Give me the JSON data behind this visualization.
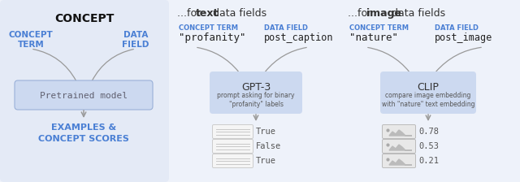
{
  "bg_color": "#eef2fa",
  "panel1_bg": "#e4eaf6",
  "box_bg": "#ccd9f0",
  "box_edge": "#9ab0d8",
  "doc_bg": "#f5f5f5",
  "doc_edge": "#cccccc",
  "img_bg": "#e8e8e8",
  "img_edge": "#bbbbbb",
  "blue_color": "#4a7fd4",
  "gray_arrow": "#999999",
  "text_dark": "#222222",
  "text_mid": "#555555",
  "text_mono": "#606070",
  "panel1_title": "CONCEPT",
  "panel1_left_label": "CONCEPT\nTERM",
  "panel1_right_label": "DATA\nFIELD",
  "panel1_box": "Pretrained model",
  "panel1_bottom": "EXAMPLES &\nCONCEPT SCORES",
  "p2_title_pre": "...for ",
  "p2_title_bold": "text",
  "p2_title_post": " data fields",
  "panel2_concept_label": "CONCEPT TERM",
  "panel2_data_label": "DATA FIELD",
  "panel2_concept_val": "\"profanity\"",
  "panel2_data_val": "post_caption",
  "panel2_box_title": "GPT-3",
  "panel2_box_sub": "prompt asking for binary\n\"profanity\" labels",
  "panel2_outputs": [
    "True",
    "False",
    "True"
  ],
  "p3_title_pre": "...for ",
  "p3_title_bold": "image",
  "p3_title_post": " data fields",
  "panel3_concept_label": "CONCEPT TERM",
  "panel3_data_label": "DATA FIELD",
  "panel3_concept_val": "\"nature\"",
  "panel3_data_val": "post_image",
  "panel3_box_title": "CLIP",
  "panel3_box_sub": "compare image embedding\nwith \"nature\" text embedding",
  "panel3_outputs": [
    "0.78",
    "0.53",
    "0.21"
  ]
}
